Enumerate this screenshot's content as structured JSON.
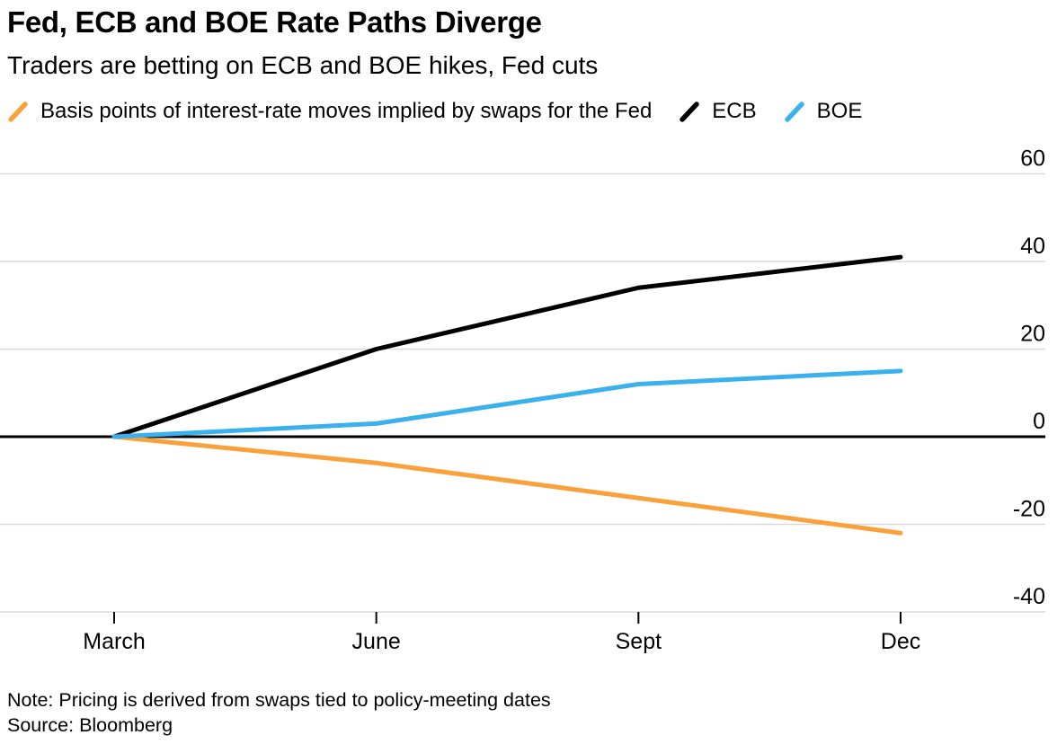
{
  "header": {
    "title": "Fed, ECB and BOE Rate Paths Diverge",
    "subtitle": "Traders are betting on ECB and BOE hikes, Fed cuts"
  },
  "chart_data": {
    "type": "line",
    "categories": [
      "March",
      "June",
      "Sept",
      "Dec"
    ],
    "series": [
      {
        "name": "Fed",
        "legend_label": "Basis points of interest-rate moves implied by swaps for the Fed",
        "color": "#F9A13B",
        "values": [
          0,
          -6,
          -14,
          -22
        ]
      },
      {
        "name": "ECB",
        "legend_label": "ECB",
        "color": "#000000",
        "values": [
          0,
          20,
          34,
          41
        ]
      },
      {
        "name": "BOE",
        "legend_label": "BOE",
        "color": "#3AB1EC",
        "values": [
          0,
          3,
          12,
          15
        ]
      }
    ],
    "title": "Fed, ECB and BOE Rate Paths Diverge",
    "xlabel": "",
    "ylabel": "Basis points of interest-rate moves implied by swaps",
    "yticks": [
      60,
      40,
      20,
      0,
      -20,
      -40
    ],
    "ylim": [
      -40,
      60
    ],
    "grid": true,
    "legend_position": "top",
    "colors": {
      "grid": "#D9D9D9",
      "zero_line": "#000000",
      "axis_text": "#000000",
      "tick": "#000000"
    }
  },
  "footer": {
    "note": "Note: Pricing is derived from swaps tied to policy-meeting dates",
    "source": "Source: Bloomberg"
  }
}
